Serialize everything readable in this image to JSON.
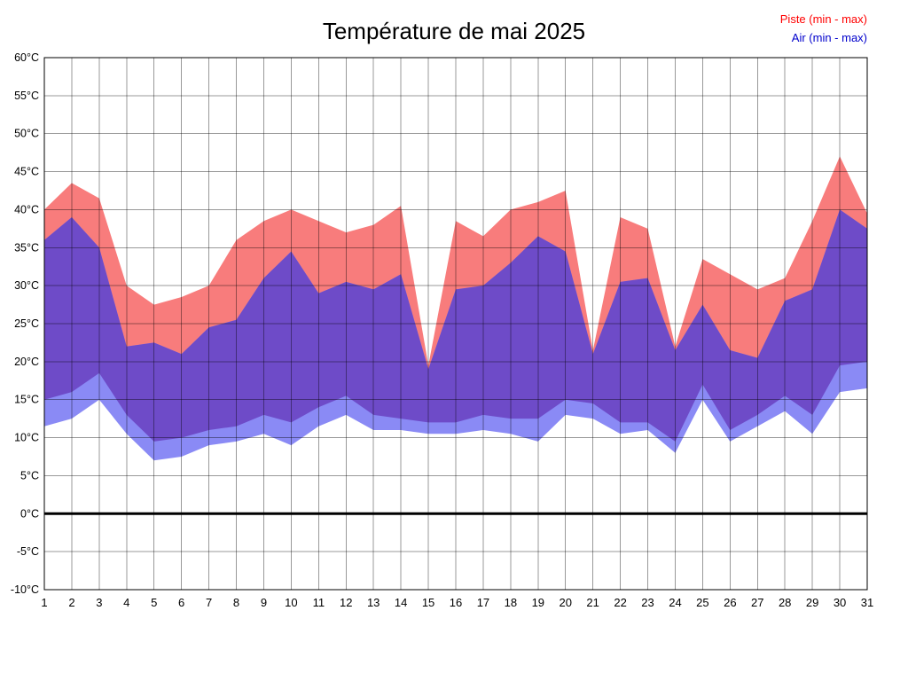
{
  "title": "Température de mai 2025",
  "legend": {
    "piste": "Piste (min - max)",
    "air": "Air (min - max)"
  },
  "chart_data": {
    "type": "area",
    "title": "Température de mai 2025",
    "ylabel": "",
    "xlabel": "",
    "ylim": [
      -10,
      60
    ],
    "ytick_step": 5,
    "ytick_suffix": "°C",
    "grid": true,
    "legend_position": "top-right",
    "x": [
      1,
      2,
      3,
      4,
      5,
      6,
      7,
      8,
      9,
      10,
      11,
      12,
      13,
      14,
      15,
      16,
      17,
      18,
      19,
      20,
      21,
      22,
      23,
      24,
      25,
      26,
      27,
      28,
      29,
      30,
      31
    ],
    "series": [
      {
        "key": "piste_max",
        "name": "Piste max",
        "values": [
          40,
          43.5,
          41.5,
          30,
          27.5,
          28.5,
          30,
          36,
          38.5,
          40,
          38.5,
          37,
          38,
          40.5,
          19.5,
          38.5,
          36.5,
          40,
          41,
          42.5,
          21.5,
          39,
          37.5,
          22,
          33.5,
          31.5,
          29.5,
          31,
          38.5,
          47,
          39.5
        ]
      },
      {
        "key": "piste_min",
        "name": "Piste min",
        "values": [
          15,
          16,
          18.5,
          13,
          9.5,
          10,
          11,
          11.5,
          13,
          12,
          14,
          15.5,
          13,
          12.5,
          12,
          12,
          13,
          12.5,
          12.5,
          15,
          14.5,
          12,
          12,
          9.5,
          17,
          11,
          13,
          15.5,
          13,
          19.5,
          20
        ]
      },
      {
        "key": "air_max",
        "name": "Air max",
        "values": [
          36,
          39,
          35,
          22,
          22.5,
          21,
          24.5,
          25.5,
          31,
          34.5,
          29,
          30.5,
          29.5,
          31.5,
          19,
          29.5,
          30,
          33,
          36.5,
          34.5,
          21,
          30.5,
          31,
          21.5,
          27.5,
          21.5,
          20.5,
          28,
          29.5,
          40,
          37.5
        ]
      },
      {
        "key": "air_min",
        "name": "Air min",
        "values": [
          11.5,
          12.5,
          15,
          10.5,
          7,
          7.5,
          9,
          9.5,
          10.5,
          9,
          11.5,
          13,
          11,
          11,
          10.5,
          10.5,
          11,
          10.5,
          9.5,
          13,
          12.5,
          10.5,
          11,
          8,
          15,
          9.5,
          11.5,
          13.5,
          10.5,
          16,
          16.5
        ]
      }
    ],
    "colors": {
      "piste_band": "#f87c7c",
      "air_band": "#8a8af5",
      "overlap_band": "#6e4bc8",
      "legend_piste": "#ff0000",
      "legend_air": "#0000cc",
      "grid": "#000000",
      "zero_line": "#000000",
      "axis_text": "#000000",
      "border": "#000000"
    }
  }
}
